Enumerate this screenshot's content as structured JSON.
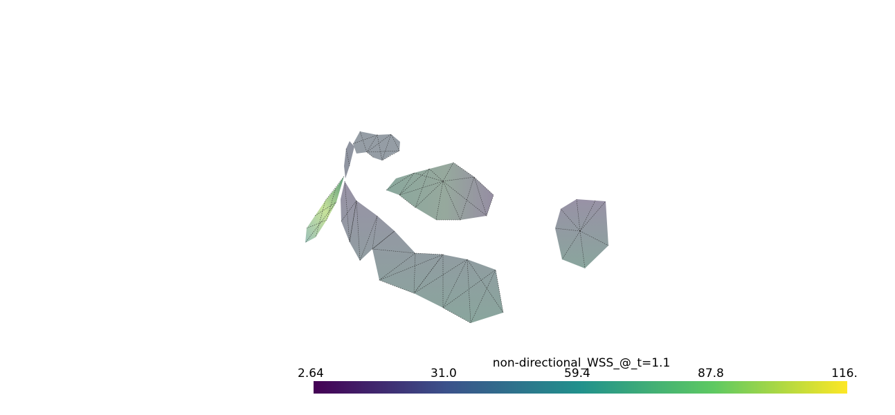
{
  "scalar_bar": {
    "title": "non-directional_WSS_@_t=1.1",
    "ticks": [
      "2.64",
      "31.0",
      "59.4",
      "87.8",
      "116."
    ],
    "colormap": "viridis",
    "range": [
      2.64,
      116
    ],
    "colors": [
      "#440154",
      "#3b528b",
      "#21918c",
      "#5ec962",
      "#fde725"
    ]
  },
  "scene": {
    "mesh_colors": {
      "gray_purple": "#8f8a9c",
      "gray_green": "#8aa39a",
      "pale_green": "#bfe08f",
      "edge": "#3a3a3a"
    }
  }
}
